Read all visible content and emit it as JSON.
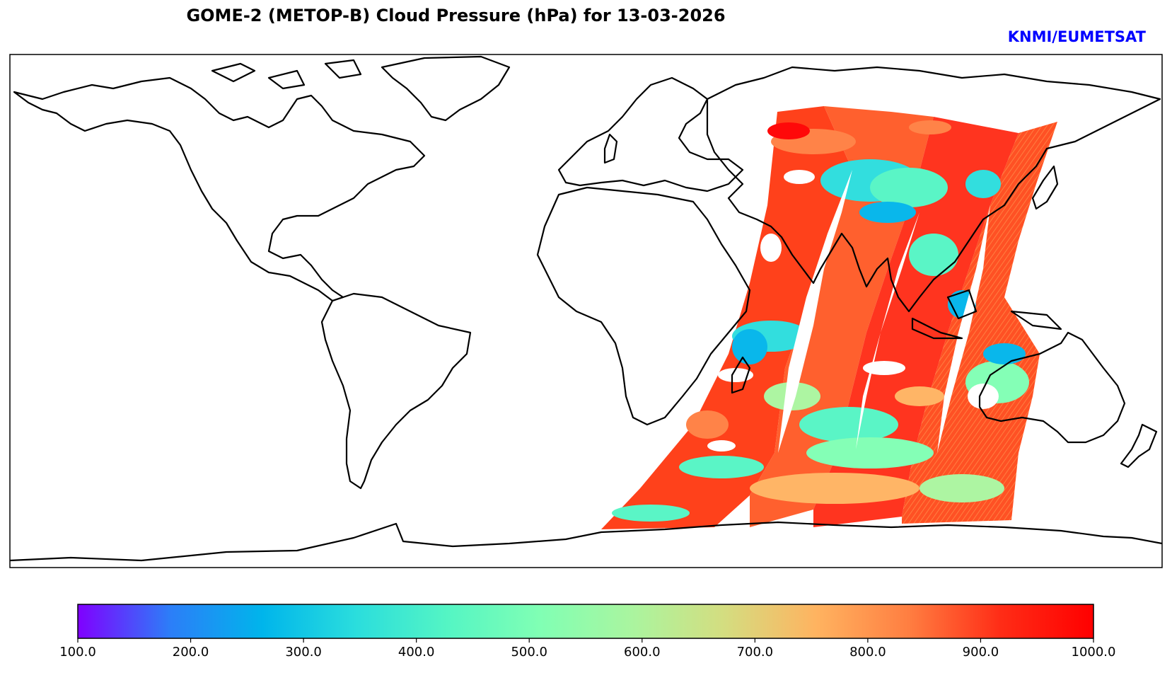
{
  "title": "GOME-2 (METOP-B) Cloud Pressure (hPa) for 13-03-2026",
  "credit": "KNMI/EUMETSAT",
  "credit_color": "#0000ff",
  "colormap": {
    "name": "rainbow",
    "stops": [
      "#8000ff",
      "#2c7ef8",
      "#00b5eb",
      "#2adddd",
      "#54f5c4",
      "#80ffb4",
      "#aaf59f",
      "#d4dd80",
      "#ffb360",
      "#ff7e41",
      "#ff2c16",
      "#ff0000"
    ],
    "vmin": 100.0,
    "vmax": 1000.0,
    "tick_labels": [
      "100.0",
      "200.0",
      "300.0",
      "400.0",
      "500.0",
      "600.0",
      "700.0",
      "800.0",
      "900.0",
      "1000.0"
    ]
  },
  "chart_data": {
    "type": "heatmap",
    "title": "GOME-2 (METOP-B) Cloud Pressure (hPa) for 13-03-2026",
    "variable": "Cloud Pressure (hPa)",
    "projection": "PlateCarree",
    "lon_range": [
      -180,
      180
    ],
    "lat_range": [
      -90,
      90
    ],
    "colorbar_range": [
      100.0,
      1000.0
    ],
    "swaths": [
      {
        "name": "swath-1",
        "lon_range": [
          20,
          75
        ],
        "lat_range": [
          -75,
          83
        ],
        "dominant_values_hpa": [
          950,
          500,
          800
        ]
      },
      {
        "name": "swath-2",
        "lon_range": [
          45,
          100
        ],
        "lat_range": [
          -75,
          75
        ],
        "dominant_values_hpa": [
          950,
          450,
          850
        ]
      },
      {
        "name": "swath-3",
        "lon_range": [
          70,
          125
        ],
        "lat_range": [
          -75,
          75
        ],
        "dominant_values_hpa": [
          900,
          400,
          800
        ]
      },
      {
        "name": "swath-4",
        "lon_range": [
          95,
          145
        ],
        "lat_range": [
          -75,
          75
        ],
        "dominant_values_hpa": [
          950,
          500,
          850
        ]
      }
    ]
  }
}
